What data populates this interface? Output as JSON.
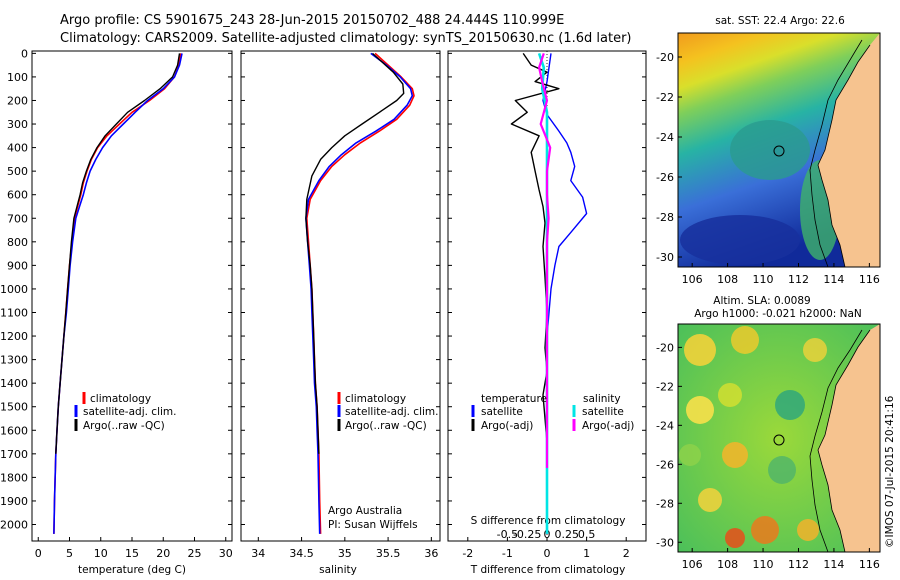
{
  "header": {
    "line1": "Argo profile: CS 5901675_243 28-Jun-2015 20150702_488 24.444S 110.999E",
    "line2": "Climatology: CARS2009. Satellite-adjusted climatology: synTS_20150630.nc (1.6d later)"
  },
  "colors": {
    "climatology": "#ff0000",
    "satellite": "#0000ff",
    "argo": "#000000",
    "satellite_s": "#00e5e5",
    "argo_s": "#ff00ff",
    "land": "#f6c38f"
  },
  "panels": {
    "temperature": {
      "xlabel": "temperature (deg C)",
      "xticks": [
        "0",
        "5",
        "10",
        "15",
        "20",
        "25",
        "30"
      ],
      "legend": [
        "climatology",
        "satellite-adj. clim.",
        "Argo(..raw -QC)"
      ]
    },
    "salinity": {
      "xlabel": "salinity",
      "xticks": [
        "34",
        "34.5",
        "35",
        "35.5",
        "36"
      ],
      "legend": [
        "climatology",
        "satellite-adj. clim.",
        "Argo(..raw -QC)"
      ],
      "note1": "Argo Australia",
      "note2": "PI: Susan Wijffels"
    },
    "difference": {
      "xlabel": "T difference from climatology",
      "top_axis_label": "S difference from climatology",
      "xticks": [
        "-2",
        "-1",
        "0",
        "1",
        "2"
      ],
      "top_ticks": [
        "-0.5",
        "-0.25",
        "0",
        "0.25",
        "0.5"
      ],
      "legend_t_title": "temperature",
      "legend_s_title": "salinity",
      "legend_t": [
        "satellite",
        "Argo(-adj)"
      ],
      "legend_s": [
        "satellite",
        "Argo(-adj)"
      ]
    },
    "depth_ticks": [
      "0",
      "100",
      "200",
      "300",
      "400",
      "500",
      "600",
      "700",
      "800",
      "900",
      "1000",
      "1100",
      "1200",
      "1300",
      "1400",
      "1500",
      "1600",
      "1700",
      "1800",
      "1900",
      "2000"
    ]
  },
  "maps": {
    "sst_title": "sat. SST: 22.4  Argo: 22.6",
    "sla_title1": "Altim. SLA: 0.0089",
    "sla_title2": "Argo h1000: -0.021 h2000: NaN",
    "xticks": [
      "106",
      "108",
      "110",
      "112",
      "114",
      "116"
    ],
    "yticks": [
      "-20",
      "-22",
      "-24",
      "-26",
      "-28",
      "-30"
    ],
    "credit": "©IMOS 07-Jul-2015 20:41:16"
  },
  "chart_data": [
    {
      "type": "line",
      "title": "",
      "xlabel": "temperature (deg C)",
      "ylabel": "",
      "xlim": [
        -1,
        31
      ],
      "ylim": [
        2070,
        0
      ],
      "series": [
        {
          "name": "climatology",
          "x": [
            22.8,
            22.5,
            21.8,
            20.2,
            17.8,
            15.0,
            13.0,
            11.0,
            9.5,
            8.5,
            7.8,
            7.2,
            6.8,
            6.3,
            5.8,
            5.4,
            5.0,
            4.7,
            4.4,
            4.1,
            3.8,
            3.5,
            3.2,
            3.0,
            2.8,
            2.6,
            2.5
          ],
          "y": [
            0,
            50,
            100,
            150,
            200,
            250,
            300,
            350,
            400,
            450,
            500,
            550,
            600,
            650,
            700,
            800,
            900,
            1000,
            1100,
            1200,
            1300,
            1400,
            1500,
            1600,
            1700,
            1900,
            2040
          ]
        },
        {
          "name": "satellite-adj. clim.",
          "x": [
            23.0,
            22.6,
            21.8,
            20.0,
            17.5,
            15.5,
            13.6,
            11.7,
            10.3,
            9.2,
            8.3,
            7.7,
            7.2,
            6.6,
            6.0,
            5.5,
            5.1,
            4.8,
            4.5,
            4.1,
            3.8,
            3.5,
            3.2,
            3.0,
            2.8,
            2.6,
            2.5
          ],
          "y": [
            0,
            50,
            100,
            150,
            200,
            250,
            300,
            350,
            400,
            450,
            500,
            550,
            600,
            650,
            700,
            800,
            900,
            1000,
            1100,
            1200,
            1300,
            1400,
            1500,
            1600,
            1700,
            1900,
            2040
          ]
        },
        {
          "name": "Argo(..raw -QC)",
          "x": [
            22.6,
            22.3,
            21.5,
            19.5,
            17.0,
            14.3,
            12.5,
            10.7,
            9.4,
            8.4,
            7.7,
            7.1,
            6.7,
            6.2,
            5.7,
            5.3,
            5.0,
            4.7,
            4.4,
            4.1,
            3.8,
            3.5,
            3.2,
            3.0,
            2.8
          ],
          "y": [
            0,
            50,
            100,
            150,
            200,
            250,
            300,
            350,
            400,
            450,
            500,
            550,
            600,
            650,
            700,
            800,
            900,
            1000,
            1100,
            1200,
            1300,
            1400,
            1500,
            1600,
            1700
          ]
        }
      ]
    },
    {
      "type": "line",
      "title": "",
      "xlabel": "salinity",
      "ylabel": "",
      "xlim": [
        33.8,
        36.1
      ],
      "ylim": [
        2070,
        0
      ],
      "series": [
        {
          "name": "climatology",
          "x": [
            35.35,
            35.5,
            35.65,
            35.78,
            35.8,
            35.75,
            35.6,
            35.4,
            35.18,
            35.0,
            34.85,
            34.72,
            34.6,
            34.56,
            34.58,
            34.6,
            34.62,
            34.63,
            34.64,
            34.65,
            34.66,
            34.68,
            34.69,
            34.7,
            34.71,
            34.72
          ],
          "y": [
            0,
            50,
            100,
            150,
            180,
            220,
            280,
            330,
            380,
            430,
            480,
            540,
            620,
            700,
            800,
            900,
            1000,
            1100,
            1200,
            1300,
            1400,
            1500,
            1600,
            1700,
            1900,
            2040
          ]
        },
        {
          "name": "satellite-adj. clim.",
          "x": [
            35.3,
            35.48,
            35.64,
            35.76,
            35.78,
            35.72,
            35.57,
            35.36,
            35.13,
            34.96,
            34.82,
            34.7,
            34.58,
            34.55,
            34.57,
            34.59,
            34.61,
            34.62,
            34.63,
            34.64,
            34.65,
            34.67,
            34.68,
            34.69,
            34.7,
            34.71
          ],
          "y": [
            0,
            50,
            100,
            150,
            180,
            220,
            280,
            330,
            380,
            430,
            480,
            540,
            620,
            700,
            800,
            900,
            1000,
            1100,
            1200,
            1300,
            1400,
            1500,
            1600,
            1700,
            1900,
            2040
          ]
        },
        {
          "name": "Argo(..raw -QC)",
          "x": [
            35.32,
            35.56,
            35.67,
            35.68,
            35.6,
            35.4,
            35.2,
            35.0,
            34.85,
            34.72,
            34.62,
            34.56,
            34.55,
            34.57,
            34.6,
            34.62,
            34.63,
            34.64,
            34.65,
            34.66,
            34.68,
            34.69,
            34.7
          ],
          "y": [
            0,
            80,
            130,
            170,
            200,
            250,
            300,
            350,
            400,
            450,
            520,
            620,
            700,
            800,
            900,
            1000,
            1100,
            1200,
            1300,
            1400,
            1500,
            1600,
            1700
          ]
        }
      ]
    },
    {
      "type": "line",
      "title": "",
      "xlabel": "T difference from climatology",
      "ylabel": "",
      "xlim": [
        -2.5,
        2.5
      ],
      "ylim": [
        2070,
        0
      ],
      "series": [
        {
          "name": "temperature satellite",
          "x": [
            0.1,
            0.05,
            0.0,
            -0.1,
            0.0,
            0.3,
            0.5,
            0.6,
            0.7,
            0.6,
            0.9,
            1.0,
            0.6,
            0.3,
            0.2,
            0.1,
            0.05,
            0.0,
            0.0,
            0.0,
            0.0,
            0.0,
            0.0,
            0.0
          ],
          "y": [
            0,
            60,
            120,
            200,
            260,
            330,
            380,
            420,
            480,
            540,
            610,
            680,
            760,
            820,
            900,
            1000,
            1100,
            1200,
            1300,
            1400,
            1500,
            1600,
            1800,
            2040
          ]
        },
        {
          "name": "temperature Argo(-adj)",
          "x": [
            -0.6,
            -0.4,
            0.0,
            -0.3,
            0.3,
            -0.8,
            -0.5,
            -0.9,
            -0.2,
            -0.4,
            -0.3,
            -0.2,
            -0.1,
            -0.05,
            -0.1,
            -0.05,
            0.0,
            -0.05,
            0.0,
            -0.1,
            -0.05,
            0.0,
            0.0
          ],
          "y": [
            0,
            50,
            80,
            120,
            150,
            200,
            250,
            300,
            350,
            420,
            500,
            580,
            650,
            720,
            820,
            950,
            1100,
            1250,
            1350,
            1450,
            1550,
            1650,
            1700
          ]
        },
        {
          "name": "salinity satellite",
          "x": [
            -0.05,
            -0.02,
            -0.03,
            0.0,
            0.0,
            0.0,
            0.0,
            0.0,
            0.0,
            0.0,
            0.0,
            0.0,
            0.0,
            0.0,
            0.0
          ],
          "y": [
            0,
            60,
            150,
            250,
            400,
            600,
            800,
            1000,
            1200,
            1400,
            1500,
            1600,
            1800,
            1900,
            2040
          ]
        },
        {
          "name": "salinity Argo(-adj)",
          "x": [
            -0.02,
            -0.05,
            -0.03,
            0.0,
            -0.04,
            0.02,
            0.0,
            0.0,
            0.01,
            0.0,
            0.0,
            0.0,
            0.0,
            0.0,
            0.0,
            0.0
          ],
          "y": [
            0,
            60,
            120,
            200,
            300,
            400,
            500,
            600,
            700,
            800,
            1000,
            1200,
            1400,
            1500,
            1600,
            1760
          ]
        }
      ]
    }
  ]
}
